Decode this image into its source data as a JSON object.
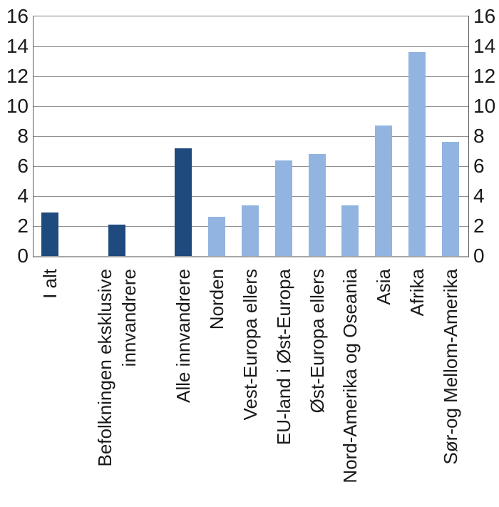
{
  "chart_data": {
    "type": "bar",
    "title": "",
    "xlabel": "",
    "ylabel": "",
    "legend": "none",
    "grid": "horizontal",
    "y_axis": {
      "min": 0,
      "max": 16,
      "step": 2,
      "ticks": [
        16,
        14,
        12,
        10,
        8,
        6,
        4,
        2,
        0
      ],
      "sides": "both"
    },
    "colors": {
      "dark": "#1F4A7D",
      "light": "#92B4E0"
    },
    "bars": [
      {
        "label": "I alt",
        "value": 2.9,
        "shade": "dark"
      },
      {
        "label": "",
        "value": null,
        "shade": "spacer"
      },
      {
        "label": "Befolkningen eksklusive\ninnvandrere",
        "value": 2.1,
        "shade": "dark"
      },
      {
        "label": "",
        "value": null,
        "shade": "spacer"
      },
      {
        "label": "Alle innvandrere",
        "value": 7.2,
        "shade": "dark"
      },
      {
        "label": "Norden",
        "value": 2.6,
        "shade": "light"
      },
      {
        "label": "Vest-Europa ellers",
        "value": 3.4,
        "shade": "light"
      },
      {
        "label": "EU-land i Øst-Europa",
        "value": 6.4,
        "shade": "light"
      },
      {
        "label": "Øst-Europa ellers",
        "value": 6.8,
        "shade": "light"
      },
      {
        "label": "Nord-Amerika og Oseania",
        "value": 3.4,
        "shade": "light"
      },
      {
        "label": "Asia",
        "value": 8.7,
        "shade": "light"
      },
      {
        "label": "Afrika",
        "value": 13.6,
        "shade": "light"
      },
      {
        "label": "Sør-og Mellom-Amerika",
        "value": 7.6,
        "shade": "light"
      }
    ]
  }
}
